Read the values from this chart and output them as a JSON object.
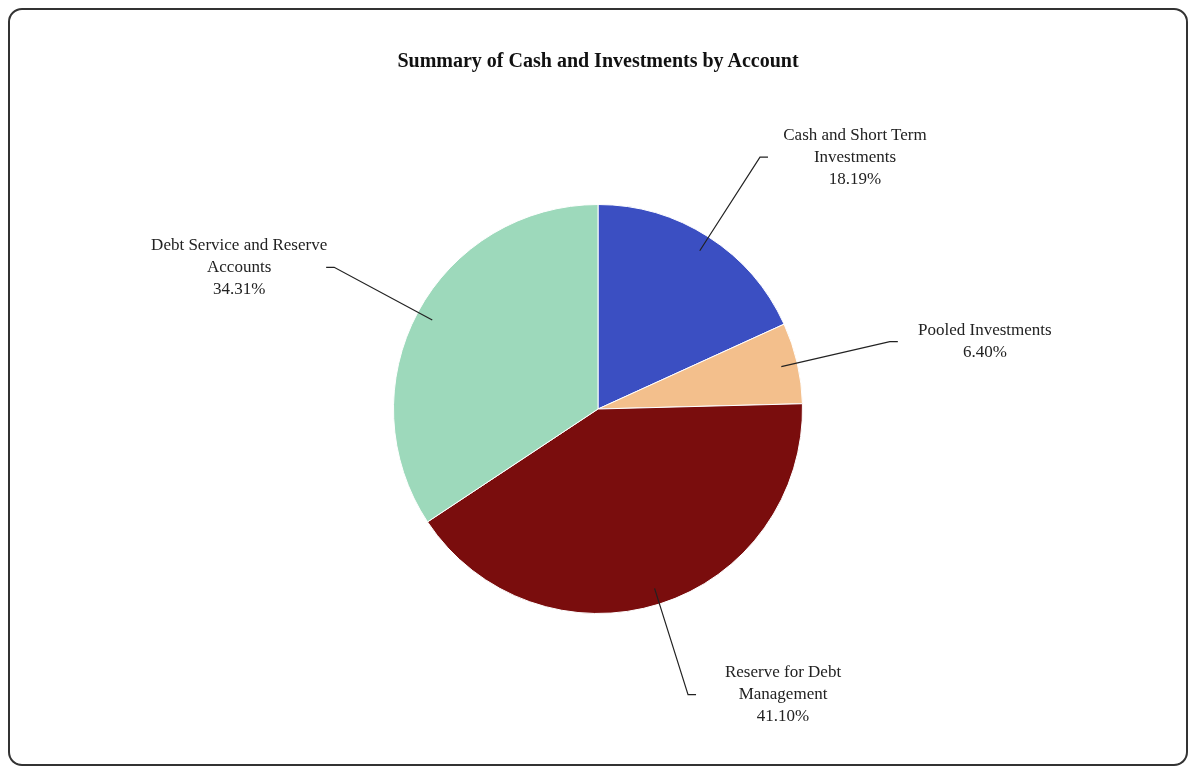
{
  "chart_data": {
    "type": "pie",
    "title": "Summary of Cash and Investments by Account",
    "categories": [
      "Cash and Short Term Investments",
      "Pooled Investments",
      "Reserve for Debt Management",
      "Debt Service and Reserve Accounts"
    ],
    "values": [
      18.19,
      6.4,
      41.1,
      34.31
    ],
    "value_labels": [
      "18.19%",
      "6.40%",
      "41.10%",
      "34.31%"
    ],
    "colors": [
      "#3b4fc2",
      "#f3bf8c",
      "#7a0d0d",
      "#9dd9bb"
    ],
    "legend": false
  }
}
